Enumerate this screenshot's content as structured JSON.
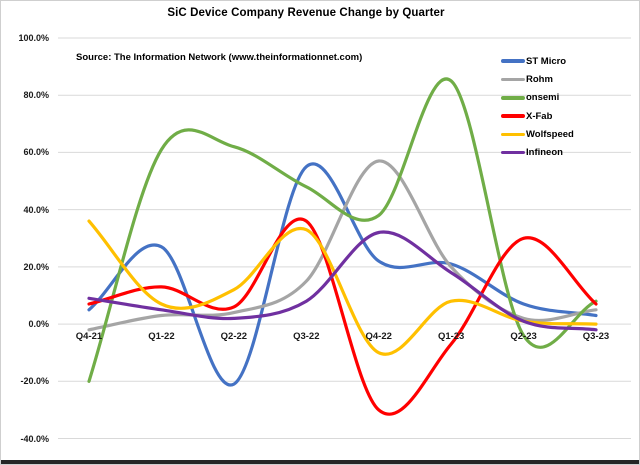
{
  "chart_data": {
    "type": "line",
    "title": "SiC Device Company Revenue Change by Quarter",
    "source_note": "Source: The Information Network (www.theinformationnet.com)",
    "categories": [
      "Q4-21",
      "Q1-22",
      "Q2-22",
      "Q3-22",
      "Q4-22",
      "Q1-23",
      "Q2-23",
      "Q3-23"
    ],
    "series": [
      {
        "name": "ST Micro",
        "color": "#4472C4",
        "values": [
          5,
          27,
          -21,
          55,
          22,
          21,
          7,
          3
        ]
      },
      {
        "name": "Rohm",
        "color": "#A5A5A5",
        "values": [
          -2,
          3,
          4,
          15,
          57,
          20,
          2,
          5
        ]
      },
      {
        "name": "onsemi",
        "color": "#70AD47",
        "values": [
          -20,
          61,
          62,
          48,
          38,
          85,
          -4,
          8
        ]
      },
      {
        "name": "X-Fab",
        "color": "#FF0000",
        "values": [
          7,
          13,
          6,
          36,
          -30,
          -7,
          30,
          7
        ]
      },
      {
        "name": "Wolfspeed",
        "color": "#FFC000",
        "values": [
          36,
          7,
          12,
          33,
          -10,
          8,
          1,
          0
        ]
      },
      {
        "name": "Infineon",
        "color": "#7030A0",
        "values": [
          9,
          5,
          2,
          8,
          32,
          18,
          1,
          -2
        ]
      }
    ],
    "value_unit": "percent",
    "xlabel": "",
    "ylabel": "",
    "ylim": [
      -40,
      100
    ],
    "ytick_step": 20,
    "ytick_labels": [
      "100.0%",
      "80.0%",
      "60.0%",
      "40.0%",
      "20.0%",
      "0.0%",
      "-20.0%",
      "-40.0%"
    ],
    "grid": "horizontal",
    "gridline_color": "#d9d9d9",
    "line_style": "smooth",
    "legend_position": "inside-top-right"
  }
}
